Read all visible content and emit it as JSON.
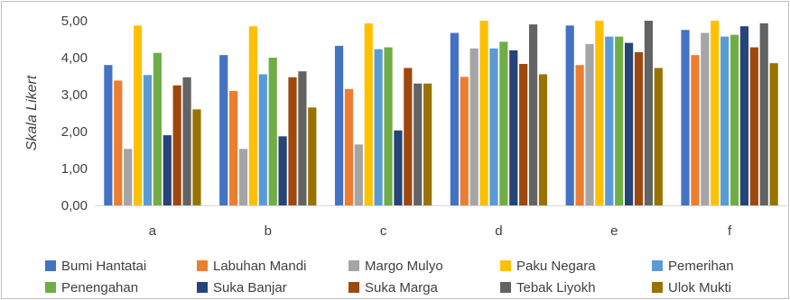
{
  "chart_data": {
    "type": "bar",
    "ylabel": "Skala Likert",
    "ylim": [
      0,
      5
    ],
    "yticks": [
      "0,00",
      "1,00",
      "2,00",
      "3,00",
      "4,00",
      "5,00"
    ],
    "categories": [
      "a",
      "b",
      "c",
      "d",
      "e",
      "f"
    ],
    "series": [
      {
        "name": "Bumi Hantatai",
        "color": "#4472c4",
        "values": [
          3.8,
          4.07,
          4.32,
          4.67,
          4.87,
          4.75
        ]
      },
      {
        "name": "Labuhan Mandi",
        "color": "#ed7d31",
        "values": [
          3.38,
          3.1,
          3.15,
          3.48,
          3.8,
          4.07
        ]
      },
      {
        "name": "Margo Mulyo",
        "color": "#a5a5a5",
        "values": [
          1.53,
          1.53,
          1.65,
          4.25,
          4.37,
          4.67
        ]
      },
      {
        "name": "Paku Negara",
        "color": "#ffc000",
        "values": [
          4.87,
          4.85,
          4.93,
          5.0,
          5.0,
          5.0
        ]
      },
      {
        "name": "Pemerihan",
        "color": "#5b9bd5",
        "values": [
          3.53,
          3.55,
          4.23,
          4.25,
          4.57,
          4.57
        ]
      },
      {
        "name": "Penengahan",
        "color": "#70ad47",
        "values": [
          4.13,
          4.0,
          4.28,
          4.43,
          4.57,
          4.62
        ]
      },
      {
        "name": "Suka Banjar",
        "color": "#264478",
        "values": [
          1.9,
          1.87,
          2.03,
          4.2,
          4.4,
          4.85
        ]
      },
      {
        "name": "Suka Marga",
        "color": "#9e480e",
        "values": [
          3.25,
          3.47,
          3.72,
          3.83,
          4.15,
          4.28
        ]
      },
      {
        "name": "Tebak Liyokh",
        "color": "#636363",
        "values": [
          3.47,
          3.63,
          3.3,
          4.9,
          5.0,
          4.93
        ]
      },
      {
        "name": "Ulok Mukti",
        "color": "#997300",
        "values": [
          2.6,
          2.65,
          3.3,
          3.55,
          3.72,
          3.85
        ]
      }
    ],
    "grid": false,
    "legend_position": "bottom"
  }
}
